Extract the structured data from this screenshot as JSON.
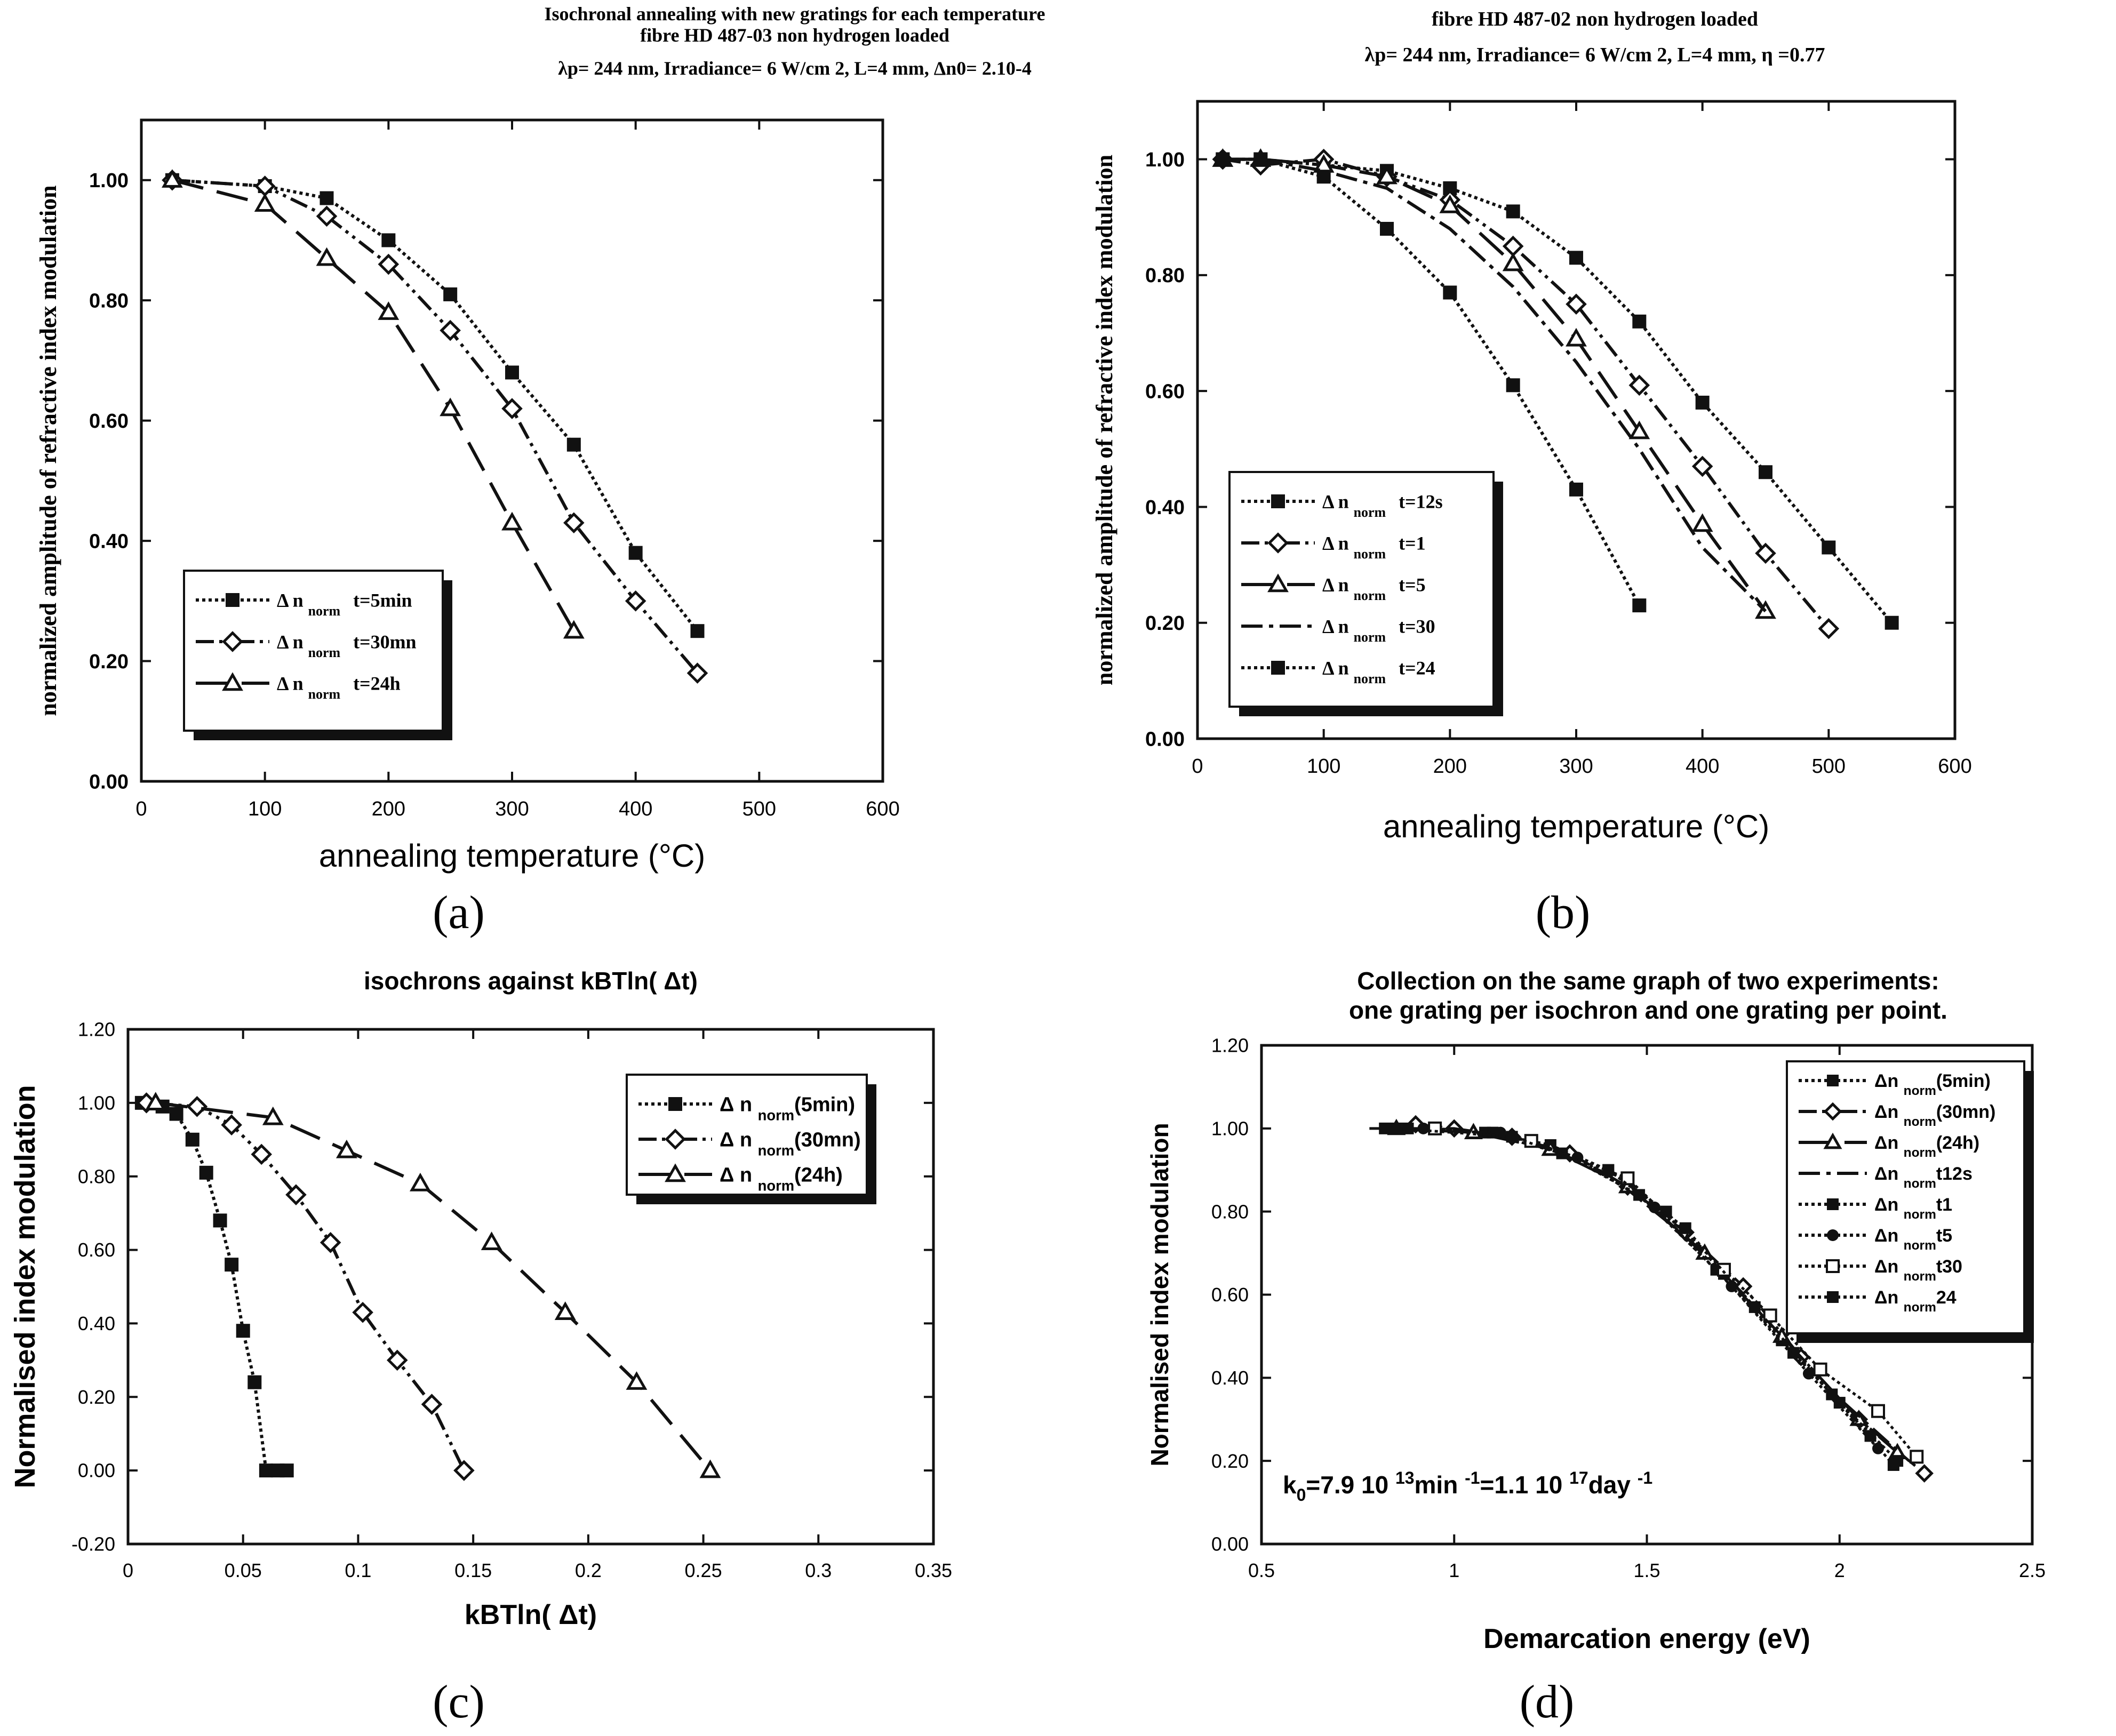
{
  "panel_labels": [
    "(a)",
    "(b)",
    "(c)",
    "(d)"
  ],
  "chart_data": [
    {
      "id": "a",
      "type": "line",
      "title_lines": [
        "Isochronal annealing with new gratings for each temperature",
        "fibre HD 487-03 non hydrogen loaded",
        "λp= 244 nm, Irradiance= 6 W/cm 2,  L=4 mm, Δn0= 2.10-4"
      ],
      "xlabel": "annealing temperature (°C)",
      "ylabel": "normalized amplitude of refractive index modulation",
      "xlim": [
        0,
        600
      ],
      "ylim": [
        0,
        1.1
      ],
      "xticks": [
        0,
        100,
        200,
        300,
        400,
        500,
        600
      ],
      "xtick_labels": [
        "0",
        "100",
        "200",
        "300",
        "400",
        "500",
        "600"
      ],
      "yticks": [
        0,
        0.2,
        0.4,
        0.6,
        0.8,
        1.0
      ],
      "ytick_labels": [
        "0.00",
        "0.20",
        "0.40",
        "0.60",
        "0.80",
        "1.00"
      ],
      "legend_position": "bottom-left",
      "series": [
        {
          "name": "Δ n norm  t=5min",
          "label_main": "Δ n",
          "label_sub": "norm",
          "label_tail": "t=5min",
          "marker": "square",
          "dash": "dot",
          "x": [
            25,
            100,
            150,
            200,
            250,
            300,
            350,
            400,
            450
          ],
          "y": [
            1.0,
            0.99,
            0.97,
            0.9,
            0.81,
            0.68,
            0.56,
            0.38,
            0.25
          ]
        },
        {
          "name": "Δ n norm  t=30mn",
          "label_main": "Δ n",
          "label_sub": "norm",
          "label_tail": "t=30mn",
          "marker": "diamond",
          "dash": "dashdotdot",
          "x": [
            25,
            100,
            150,
            200,
            250,
            300,
            350,
            400,
            450
          ],
          "y": [
            1.0,
            0.99,
            0.94,
            0.86,
            0.75,
            0.62,
            0.43,
            0.3,
            0.18
          ]
        },
        {
          "name": "Δ n norm  t=24h",
          "label_main": "Δ n",
          "label_sub": "norm",
          "label_tail": "t=24h",
          "marker": "triangle",
          "dash": "longdash",
          "x": [
            25,
            100,
            150,
            200,
            250,
            300,
            350
          ],
          "y": [
            1.0,
            0.96,
            0.87,
            0.78,
            0.62,
            0.43,
            0.25
          ]
        }
      ]
    },
    {
      "id": "b",
      "type": "line",
      "title_lines": [
        "fibre HD 487-02 non hydrogen loaded",
        "λp= 244 nm, Irradiance= 6 W/cm 2,  L=4 mm,  η =0.77"
      ],
      "xlabel": "annealing temperature (°C)",
      "ylabel": "normalized amplitude of refractive index modulation",
      "xlim": [
        0,
        600
      ],
      "ylim": [
        0,
        1.1
      ],
      "xticks": [
        0,
        100,
        200,
        300,
        400,
        500,
        600
      ],
      "xtick_labels": [
        "0",
        "100",
        "200",
        "300",
        "400",
        "500",
        "600"
      ],
      "yticks": [
        0,
        0.2,
        0.4,
        0.6,
        0.8,
        1.0
      ],
      "ytick_labels": [
        "0.00",
        "0.20",
        "0.40",
        "0.60",
        "0.80",
        "1.00"
      ],
      "legend_position": "bottom-left",
      "series": [
        {
          "name": "Δ n norm  t=12s",
          "label_main": "Δ n",
          "label_sub": "norm",
          "label_tail": "t=12s",
          "marker": "square",
          "dash": "dot",
          "x": [
            20,
            50,
            100,
            150,
            200,
            250,
            300,
            350,
            400,
            450,
            500,
            550
          ],
          "y": [
            1.0,
            1.0,
            0.99,
            0.98,
            0.95,
            0.91,
            0.83,
            0.72,
            0.58,
            0.46,
            0.33,
            0.2
          ]
        },
        {
          "name": "Δ n norm  t=1",
          "label_main": "Δ n",
          "label_sub": "norm",
          "label_tail": "t=1",
          "marker": "diamond",
          "dash": "dashdotdot",
          "x": [
            20,
            50,
            100,
            150,
            200,
            250,
            300,
            350,
            400,
            450,
            500
          ],
          "y": [
            1.0,
            0.99,
            1.0,
            0.97,
            0.93,
            0.85,
            0.75,
            0.61,
            0.47,
            0.32,
            0.19
          ]
        },
        {
          "name": "Δ n norm  t=5",
          "label_main": "Δ n",
          "label_sub": "norm",
          "label_tail": "t=5",
          "marker": "triangle",
          "dash": "longdash",
          "x": [
            20,
            50,
            100,
            150,
            200,
            250,
            300,
            350,
            400,
            450
          ],
          "y": [
            1.0,
            1.0,
            0.99,
            0.97,
            0.92,
            0.82,
            0.69,
            0.53,
            0.37,
            0.22
          ]
        },
        {
          "name": "Δ n norm  t=30",
          "label_main": "Δ n",
          "label_sub": "norm",
          "label_tail": "t=30",
          "marker": "none",
          "dash": "dashdot",
          "x": [
            20,
            50,
            100,
            150,
            200,
            250,
            300,
            350,
            400,
            450
          ],
          "y": [
            1.0,
            1.0,
            0.98,
            0.95,
            0.88,
            0.78,
            0.65,
            0.5,
            0.33,
            0.22
          ]
        },
        {
          "name": "Δ n norm  t=24",
          "label_main": "Δ n",
          "label_sub": "norm",
          "label_tail": "t=24",
          "marker": "square",
          "dash": "dot",
          "x": [
            20,
            50,
            100,
            150,
            200,
            250,
            300,
            350
          ],
          "y": [
            1.0,
            1.0,
            0.97,
            0.88,
            0.77,
            0.61,
            0.43,
            0.23
          ]
        }
      ]
    },
    {
      "id": "c",
      "type": "line",
      "title_lines": [
        "isochrons against kBTln( Δt)"
      ],
      "xlabel": "kBTln( Δt)",
      "ylabel": "Normalised index modulation",
      "xlim": [
        0,
        0.35
      ],
      "ylim": [
        -0.2,
        1.2
      ],
      "xticks": [
        0,
        0.05,
        0.1,
        0.15,
        0.2,
        0.25,
        0.3,
        0.35
      ],
      "xtick_labels": [
        "0",
        "0.05",
        "0.1",
        "0.15",
        "0.2",
        "0.25",
        "0.3",
        "0.35"
      ],
      "yticks": [
        -0.2,
        0,
        0.2,
        0.4,
        0.6,
        0.8,
        1.0,
        1.2
      ],
      "ytick_labels": [
        "-0.20",
        "0.00",
        "0.20",
        "0.40",
        "0.60",
        "0.80",
        "1.00",
        "1.20"
      ],
      "legend_position": "top-right",
      "series": [
        {
          "name": "Δ n norm (5min)",
          "label_main": "Δ n",
          "label_sub": "norm",
          "label_tail": "(5min)",
          "marker": "square",
          "dash": "dot",
          "x": [
            0.006,
            0.015,
            0.021,
            0.028,
            0.034,
            0.04,
            0.045,
            0.05,
            0.055,
            0.06,
            0.065,
            0.069
          ],
          "y": [
            1.0,
            0.99,
            0.97,
            0.9,
            0.81,
            0.68,
            0.56,
            0.38,
            0.24,
            0.0,
            0.0,
            0.0
          ]
        },
        {
          "name": "Δ n norm (30mn)",
          "label_main": "Δ n",
          "label_sub": "norm",
          "label_tail": "(30mn)",
          "marker": "diamond",
          "dash": "dashdotdot",
          "x": [
            0.008,
            0.03,
            0.045,
            0.058,
            0.073,
            0.088,
            0.102,
            0.117,
            0.132,
            0.146
          ],
          "y": [
            1.0,
            0.99,
            0.94,
            0.86,
            0.75,
            0.62,
            0.43,
            0.3,
            0.18,
            0.0
          ]
        },
        {
          "name": "Δ n norm (24h)",
          "label_main": "Δ n",
          "label_sub": "norm",
          "label_tail": "(24h)",
          "marker": "triangle",
          "dash": "longdash",
          "x": [
            0.012,
            0.063,
            0.095,
            0.127,
            0.158,
            0.19,
            0.221,
            0.253
          ],
          "y": [
            1.0,
            0.96,
            0.87,
            0.78,
            0.62,
            0.43,
            0.24,
            0.0
          ]
        }
      ]
    },
    {
      "id": "d",
      "type": "line",
      "title_lines": [
        "Collection on the same graph of two experiments:",
        "one grating per isochron and one grating per point."
      ],
      "xlabel": "Demarcation energy (eV)",
      "ylabel": "Normalised index modulation",
      "xlim": [
        0.5,
        2.5
      ],
      "ylim": [
        0,
        1.2
      ],
      "xticks": [
        0.5,
        1,
        1.5,
        2,
        2.5
      ],
      "xtick_labels": [
        "0.5",
        "1",
        "1.5",
        "2",
        "2.5"
      ],
      "yticks": [
        0,
        0.2,
        0.4,
        0.6,
        0.8,
        1.0,
        1.2
      ],
      "ytick_labels": [
        "0.00",
        "0.20",
        "0.40",
        "0.60",
        "0.80",
        "1.00",
        "1.20"
      ],
      "legend_position": "top-right",
      "annotation": "k0=7.9 10 13min -1=1.1 10 17day -1",
      "annotation_parts": [
        "k",
        "0",
        "=7.9 10 ",
        "13",
        "min ",
        "-1",
        "=1.1 10 ",
        "17",
        "day ",
        "-1"
      ],
      "series": [
        {
          "name": "Δn norm (5min)",
          "label_main": "Δn",
          "label_sub": "norm",
          "label_tail": "(5min)",
          "marker": "square",
          "dash": "dot",
          "x": [
            0.82,
            0.95,
            1.1,
            1.25,
            1.4,
            1.55,
            1.7,
            1.85,
            2.0,
            2.14
          ],
          "y": [
            1.0,
            1.0,
            0.99,
            0.96,
            0.9,
            0.8,
            0.65,
            0.49,
            0.34,
            0.19
          ]
        },
        {
          "name": "Δn norm (30mn)",
          "label_main": "Δn",
          "label_sub": "norm",
          "label_tail": "(30mn)",
          "marker": "diamond",
          "dash": "dashdotdot",
          "x": [
            0.9,
            1.0,
            1.15,
            1.3,
            1.45,
            1.6,
            1.75,
            1.9,
            2.05,
            2.22
          ],
          "y": [
            1.01,
            1.0,
            0.98,
            0.94,
            0.86,
            0.75,
            0.62,
            0.45,
            0.3,
            0.17
          ]
        },
        {
          "name": "Δn norm (24h)",
          "label_main": "Δn",
          "label_sub": "norm",
          "label_tail": "(24h)",
          "marker": "triangle",
          "dash": "longdash",
          "x": [
            0.85,
            1.05,
            1.25,
            1.45,
            1.65,
            1.85,
            2.05,
            2.15
          ],
          "y": [
            1.0,
            0.99,
            0.95,
            0.86,
            0.7,
            0.5,
            0.3,
            0.22
          ]
        },
        {
          "name": "Δn norm t12s",
          "label_main": "Δn",
          "label_sub": "norm",
          "label_tail": "t12s",
          "marker": "none",
          "dash": "dashdot",
          "x": [
            0.78,
            1.0,
            1.2,
            1.4,
            1.6,
            1.8,
            2.0,
            2.18
          ],
          "y": [
            1.0,
            1.0,
            0.97,
            0.89,
            0.74,
            0.55,
            0.35,
            0.2
          ]
        },
        {
          "name": "Δn norm t1",
          "label_main": "Δn",
          "label_sub": "norm",
          "label_tail": "t1",
          "marker": "square",
          "dash": "dot",
          "x": [
            0.88,
            1.08,
            1.28,
            1.48,
            1.68,
            1.88,
            2.08
          ],
          "y": [
            1.0,
            0.99,
            0.94,
            0.84,
            0.66,
            0.46,
            0.26
          ]
        },
        {
          "name": "Δn norm t5",
          "label_main": "Δn",
          "label_sub": "norm",
          "label_tail": "t5",
          "marker": "circle",
          "dash": "dot",
          "x": [
            0.92,
            1.12,
            1.32,
            1.52,
            1.72,
            1.92,
            2.1
          ],
          "y": [
            1.0,
            0.99,
            0.93,
            0.81,
            0.62,
            0.41,
            0.23
          ]
        },
        {
          "name": "Δn norm t30",
          "label_main": "Δn",
          "label_sub": "norm",
          "label_tail": "t30",
          "marker": "open-square",
          "dash": "dot",
          "x": [
            0.95,
            1.2,
            1.45,
            1.7,
            1.82,
            1.95,
            2.1,
            2.2
          ],
          "y": [
            1.0,
            0.97,
            0.88,
            0.66,
            0.55,
            0.42,
            0.32,
            0.21
          ]
        },
        {
          "name": "Δn norm 24",
          "label_main": "Δn",
          "label_sub": "norm",
          "label_tail": "24",
          "marker": "square",
          "dash": "dot",
          "x": [
            0.85,
            1.15,
            1.4,
            1.6,
            1.78,
            1.98,
            2.15
          ],
          "y": [
            1.0,
            0.98,
            0.9,
            0.76,
            0.57,
            0.36,
            0.2
          ]
        }
      ]
    }
  ]
}
